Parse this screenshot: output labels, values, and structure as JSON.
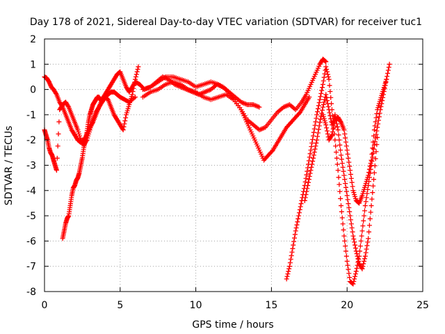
{
  "chart_data": {
    "type": "scatter",
    "title": "Day 178 of 2021, Sidereal Day-to-day VTEC variation (SDTVAR) for receiver tuc1",
    "xlabel": "GPS time / hours",
    "ylabel": "SDTVAR / TECUs",
    "xlim": [
      0,
      25
    ],
    "ylim": [
      -8,
      2
    ],
    "xticks": [
      0,
      5,
      10,
      15,
      20,
      25
    ],
    "yticks": [
      -8,
      -7,
      -6,
      -5,
      -4,
      -3,
      -2,
      -1,
      0,
      1,
      2
    ],
    "grid": true,
    "marker": "+",
    "color": "#ff0000",
    "series": [
      {
        "name": "trace-a",
        "x": [
          0.0,
          0.15,
          0.3,
          0.45,
          0.6,
          0.8,
          1.0,
          1.2,
          1.4,
          1.6,
          1.8,
          2.0,
          2.2,
          2.4,
          2.6,
          2.8,
          3.0,
          3.2,
          3.4,
          3.6,
          3.8,
          4.0,
          4.2,
          4.4,
          4.6,
          4.8,
          5.0,
          5.2,
          5.4,
          5.6,
          5.8,
          6.0,
          6.3,
          6.6,
          7.0,
          7.4,
          7.8,
          8.2,
          8.6,
          9.0,
          9.4,
          9.8,
          10.2,
          10.6,
          11.0,
          11.4,
          11.8,
          12.2,
          12.6,
          13.0,
          13.4,
          13.8,
          14.2
        ],
        "y": [
          0.5,
          0.45,
          0.3,
          0.1,
          0.0,
          -0.2,
          -0.5,
          -0.7,
          -1.0,
          -1.3,
          -1.6,
          -1.8,
          -2.0,
          -2.1,
          -2.0,
          -1.8,
          -1.5,
          -1.3,
          -1.0,
          -0.7,
          -0.4,
          -0.2,
          0.0,
          0.2,
          0.4,
          0.6,
          0.7,
          0.4,
          0.1,
          -0.1,
          0.1,
          0.3,
          0.2,
          0.0,
          0.1,
          0.3,
          0.5,
          0.4,
          0.2,
          0.1,
          0.0,
          -0.1,
          -0.2,
          -0.1,
          0.0,
          0.2,
          0.1,
          -0.1,
          -0.3,
          -0.5,
          -0.6,
          -0.6,
          -0.7
        ]
      },
      {
        "name": "trace-b",
        "x": [
          0.0,
          0.1,
          0.2,
          0.3,
          0.4,
          0.5,
          0.6,
          0.7,
          0.8,
          1.0,
          1.2,
          1.4,
          1.6,
          1.8,
          2.0,
          2.2,
          2.4,
          2.6,
          2.8,
          3.0,
          3.2,
          3.4,
          3.6,
          3.8,
          4.0,
          4.2,
          4.4,
          4.6,
          4.8,
          5.0,
          5.2,
          5.4,
          5.6,
          5.8,
          6.0,
          6.2
        ],
        "y": [
          -1.6,
          -1.8,
          -2.0,
          -2.3,
          -2.5,
          -2.6,
          -2.8,
          -3.0,
          -3.2,
          -0.8,
          -0.6,
          -0.5,
          -0.7,
          -1.0,
          -1.3,
          -1.6,
          -2.0,
          -2.2,
          -2.0,
          -1.6,
          -1.2,
          -0.9,
          -0.7,
          -0.5,
          -0.3,
          -0.4,
          -0.7,
          -1.0,
          -1.2,
          -1.4,
          -1.6,
          -1.0,
          -0.6,
          -0.2,
          0.4,
          0.9
        ]
      },
      {
        "name": "trace-c",
        "x": [
          1.2,
          1.3,
          1.4,
          1.5,
          1.6,
          1.7,
          1.8,
          1.9,
          2.0,
          2.1,
          2.2,
          2.3,
          2.4,
          2.5,
          2.6,
          2.7,
          2.8,
          2.9,
          3.0,
          3.1,
          3.2,
          3.3,
          3.4,
          3.5,
          3.6,
          3.7,
          3.8,
          3.9,
          4.0,
          4.2,
          4.4,
          4.6,
          4.8,
          5.0,
          5.3,
          5.6,
          6.0
        ],
        "y": [
          -5.9,
          -5.6,
          -5.3,
          -5.1,
          -5.0,
          -4.6,
          -4.2,
          -3.9,
          -3.8,
          -3.6,
          -3.5,
          -3.3,
          -3.0,
          -2.7,
          -2.3,
          -2.0,
          -1.7,
          -1.3,
          -1.0,
          -0.8,
          -0.6,
          -0.5,
          -0.4,
          -0.3,
          -0.3,
          -0.4,
          -0.5,
          -0.4,
          -0.3,
          -0.2,
          -0.1,
          -0.1,
          -0.2,
          -0.3,
          -0.4,
          -0.5,
          -0.3
        ]
      },
      {
        "name": "trace-d",
        "x": [
          6.5,
          7.0,
          7.5,
          8.0,
          8.5,
          9.0,
          9.5,
          10.0,
          10.5,
          11.0,
          11.5,
          12.0,
          12.5,
          13.0,
          13.3,
          13.6,
          13.9,
          14.2,
          14.5,
          14.8,
          15.1,
          15.4,
          15.7,
          16.0,
          16.3,
          16.6,
          16.9,
          17.2,
          17.5
        ],
        "y": [
          -0.3,
          -0.1,
          0.0,
          0.2,
          0.3,
          0.2,
          0.0,
          -0.1,
          -0.3,
          -0.4,
          -0.3,
          -0.2,
          -0.4,
          -0.8,
          -1.2,
          -1.6,
          -2.0,
          -2.4,
          -2.8,
          -2.6,
          -2.4,
          -2.1,
          -1.8,
          -1.5,
          -1.3,
          -1.1,
          -0.9,
          -0.6,
          -0.3
        ]
      },
      {
        "name": "trace-e",
        "x": [
          6.5,
          7.0,
          7.5,
          8.0,
          8.5,
          9.0,
          9.5,
          10.0,
          10.5,
          11.0,
          11.5,
          12.0,
          12.5,
          13.0,
          13.4,
          13.8,
          14.2,
          14.6,
          15.0,
          15.4,
          15.8,
          16.2,
          16.6,
          17.0,
          17.3,
          17.6,
          17.9,
          18.2,
          18.4,
          18.6
        ],
        "y": [
          0.0,
          0.1,
          0.3,
          0.5,
          0.5,
          0.4,
          0.3,
          0.1,
          0.2,
          0.3,
          0.2,
          0.0,
          -0.4,
          -0.8,
          -1.2,
          -1.4,
          -1.6,
          -1.5,
          -1.2,
          -0.9,
          -0.7,
          -0.6,
          -0.8,
          -0.5,
          -0.2,
          0.2,
          0.6,
          1.0,
          1.2,
          1.1
        ]
      },
      {
        "name": "trace-f",
        "x": [
          16.0,
          16.2,
          16.4,
          16.6,
          16.8,
          17.0,
          17.2,
          17.4,
          17.6,
          17.8,
          18.0,
          18.2,
          18.4,
          18.6,
          18.8,
          19.0,
          19.2,
          19.4,
          19.6,
          19.8,
          20.0,
          20.2,
          20.4,
          20.6,
          20.8,
          21.0,
          21.2,
          21.4,
          21.6,
          21.8,
          22.0,
          22.2,
          22.4,
          22.6,
          22.8
        ],
        "y": [
          -7.5,
          -7.0,
          -6.3,
          -5.6,
          -5.0,
          -4.4,
          -3.8,
          -3.1,
          -2.4,
          -1.7,
          -1.0,
          -0.4,
          0.2,
          0.9,
          0.4,
          -0.8,
          -2.0,
          -3.2,
          -4.6,
          -5.8,
          -6.8,
          -7.6,
          -7.7,
          -7.2,
          -6.6,
          -5.6,
          -4.6,
          -3.8,
          -3.0,
          -2.2,
          -1.5,
          -0.8,
          -0.2,
          0.4,
          1.0
        ]
      },
      {
        "name": "trace-g",
        "x": [
          17.2,
          17.4,
          17.6,
          17.8,
          18.0,
          18.2,
          18.4,
          18.6,
          18.8,
          19.0,
          19.2,
          19.4,
          19.6,
          19.8,
          20.0,
          20.2,
          20.4,
          20.6,
          20.8,
          21.0,
          21.2,
          21.4,
          21.6,
          21.8,
          22.0
        ],
        "y": [
          -4.4,
          -3.8,
          -3.2,
          -2.6,
          -2.0,
          -1.3,
          -0.7,
          -0.2,
          -0.8,
          -1.4,
          -1.0,
          -1.6,
          -2.6,
          -3.4,
          -4.2,
          -5.0,
          -5.8,
          -6.4,
          -6.9,
          -7.1,
          -6.6,
          -5.9,
          -4.6,
          -3.3,
          -1.9
        ]
      },
      {
        "name": "trace-h",
        "x": [
          18.4,
          18.6,
          18.8,
          19.0,
          19.2,
          19.4,
          19.6,
          19.8,
          20.0,
          20.2,
          20.4,
          20.6,
          20.8,
          21.0,
          21.2,
          21.4,
          21.6,
          21.8,
          22.0,
          22.2,
          22.4,
          22.6
        ],
        "y": [
          -1.0,
          -1.4,
          -2.0,
          -1.8,
          -1.2,
          -1.1,
          -1.3,
          -1.6,
          -2.4,
          -3.2,
          -4.0,
          -4.4,
          -4.5,
          -4.2,
          -3.8,
          -3.4,
          -2.8,
          -1.6,
          -0.8,
          -0.4,
          0.0,
          0.4
        ]
      }
    ]
  }
}
